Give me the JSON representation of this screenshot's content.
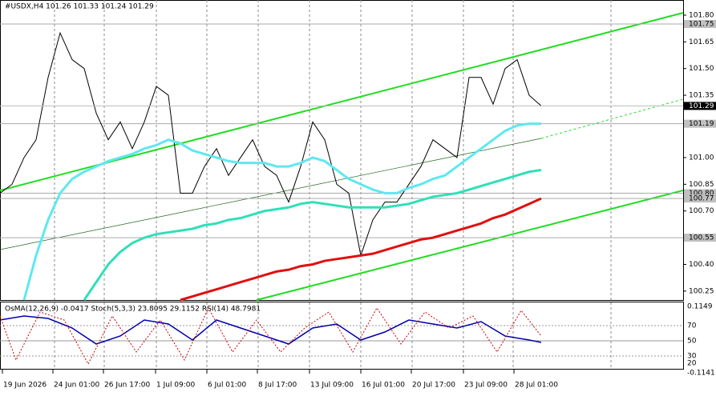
{
  "header": "#USDX,H4  101.26 101.33 101.24 101.29",
  "chart": {
    "ylim": [
      100.2,
      101.885
    ],
    "yticks": [
      {
        "value": 101.8,
        "label": "101.80"
      },
      {
        "value": 101.65,
        "label": "101.65"
      },
      {
        "value": 101.5,
        "label": "101.50"
      },
      {
        "value": 101.35,
        "label": "101.35"
      },
      {
        "value": 101.0,
        "label": "101.00"
      },
      {
        "value": 100.85,
        "label": "100.85"
      },
      {
        "value": 100.7,
        "label": "100.70"
      },
      {
        "value": 100.4,
        "label": "100.40"
      },
      {
        "value": 100.25,
        "label": "100.25"
      }
    ],
    "levels": [
      {
        "value": 101.75,
        "label": "101.75"
      },
      {
        "value": 101.19,
        "label": "101.19"
      },
      {
        "value": 100.8,
        "label": "100.80"
      },
      {
        "value": 100.77,
        "label": "100.77"
      },
      {
        "value": 100.55,
        "label": "100.55"
      }
    ],
    "current": {
      "value": 101.29,
      "label": "101.29"
    },
    "series": [
      {
        "color": "#000000",
        "values": [
          100.8,
          100.85,
          101.0,
          101.1,
          101.45,
          101.7,
          101.55,
          101.5,
          101.25,
          101.1,
          101.2,
          101.05,
          101.2,
          101.4,
          101.35,
          100.8,
          100.8,
          100.95,
          101.05,
          100.9,
          101.0,
          101.1,
          100.95,
          100.9,
          100.75,
          100.95,
          101.2,
          101.1,
          100.85,
          100.8,
          100.45,
          100.65,
          100.75,
          100.75,
          100.85,
          100.95,
          101.1,
          101.05,
          101.0,
          101.45,
          101.45,
          101.3,
          101.5,
          101.55,
          101.35,
          101.29
        ]
      },
      {
        "color": "#5ee8f0",
        "values": [
          null,
          null,
          100.2,
          100.45,
          100.65,
          100.8,
          100.88,
          100.92,
          100.95,
          100.98,
          101.0,
          101.02,
          101.05,
          101.07,
          101.1,
          101.08,
          101.04,
          101.02,
          101.0,
          100.98,
          100.97,
          100.97,
          100.97,
          100.95,
          100.95,
          100.97,
          101.0,
          100.98,
          100.93,
          100.88,
          100.85,
          100.82,
          100.8,
          100.8,
          100.83,
          100.85,
          100.88,
          100.9,
          100.95,
          101.0,
          101.05,
          101.1,
          101.15,
          101.18,
          101.19,
          101.19
        ]
      },
      {
        "color": "#2ee0b8",
        "values": [
          null,
          null,
          null,
          null,
          null,
          null,
          null,
          100.2,
          100.3,
          100.4,
          100.47,
          100.52,
          100.55,
          100.57,
          100.58,
          100.59,
          100.6,
          100.62,
          100.63,
          100.65,
          100.66,
          100.68,
          100.7,
          100.71,
          100.72,
          100.74,
          100.75,
          100.74,
          100.73,
          100.72,
          100.72,
          100.72,
          100.72,
          100.73,
          100.74,
          100.76,
          100.78,
          100.79,
          100.8,
          100.82,
          100.84,
          100.86,
          100.88,
          100.9,
          100.92,
          100.93
        ]
      },
      {
        "color": "#e01010",
        "values": [
          null,
          null,
          null,
          null,
          null,
          null,
          null,
          null,
          null,
          null,
          null,
          null,
          null,
          null,
          null,
          100.2,
          100.22,
          100.24,
          100.26,
          100.28,
          100.3,
          100.32,
          100.34,
          100.36,
          100.37,
          100.39,
          100.4,
          100.42,
          100.43,
          100.44,
          100.45,
          100.46,
          100.48,
          100.5,
          100.52,
          100.54,
          100.55,
          100.57,
          100.59,
          100.61,
          100.63,
          100.66,
          100.68,
          100.71,
          100.74,
          100.77
        ]
      }
    ]
  },
  "oscillator": {
    "header": "OsMA(12,26,9) -0.0417  Stoch(5,3,3) 23.8095 29.1152  RSI(14) 48.7981",
    "labels": [
      "0.1149",
      "70",
      "50",
      "30",
      "20",
      "-0.1141"
    ]
  },
  "time_labels": [
    "19 Jun 2026",
    "24 Jun 01:00",
    "26 Jun 17:00",
    "1 Jul 09:00",
    "6 Jul 01:00",
    "8 Jul 17:00",
    "13 Jul 09:00",
    "16 Jul 01:00",
    "20 Jul 17:00",
    "23 Jul 09:00",
    "28 Jul 01:00"
  ]
}
